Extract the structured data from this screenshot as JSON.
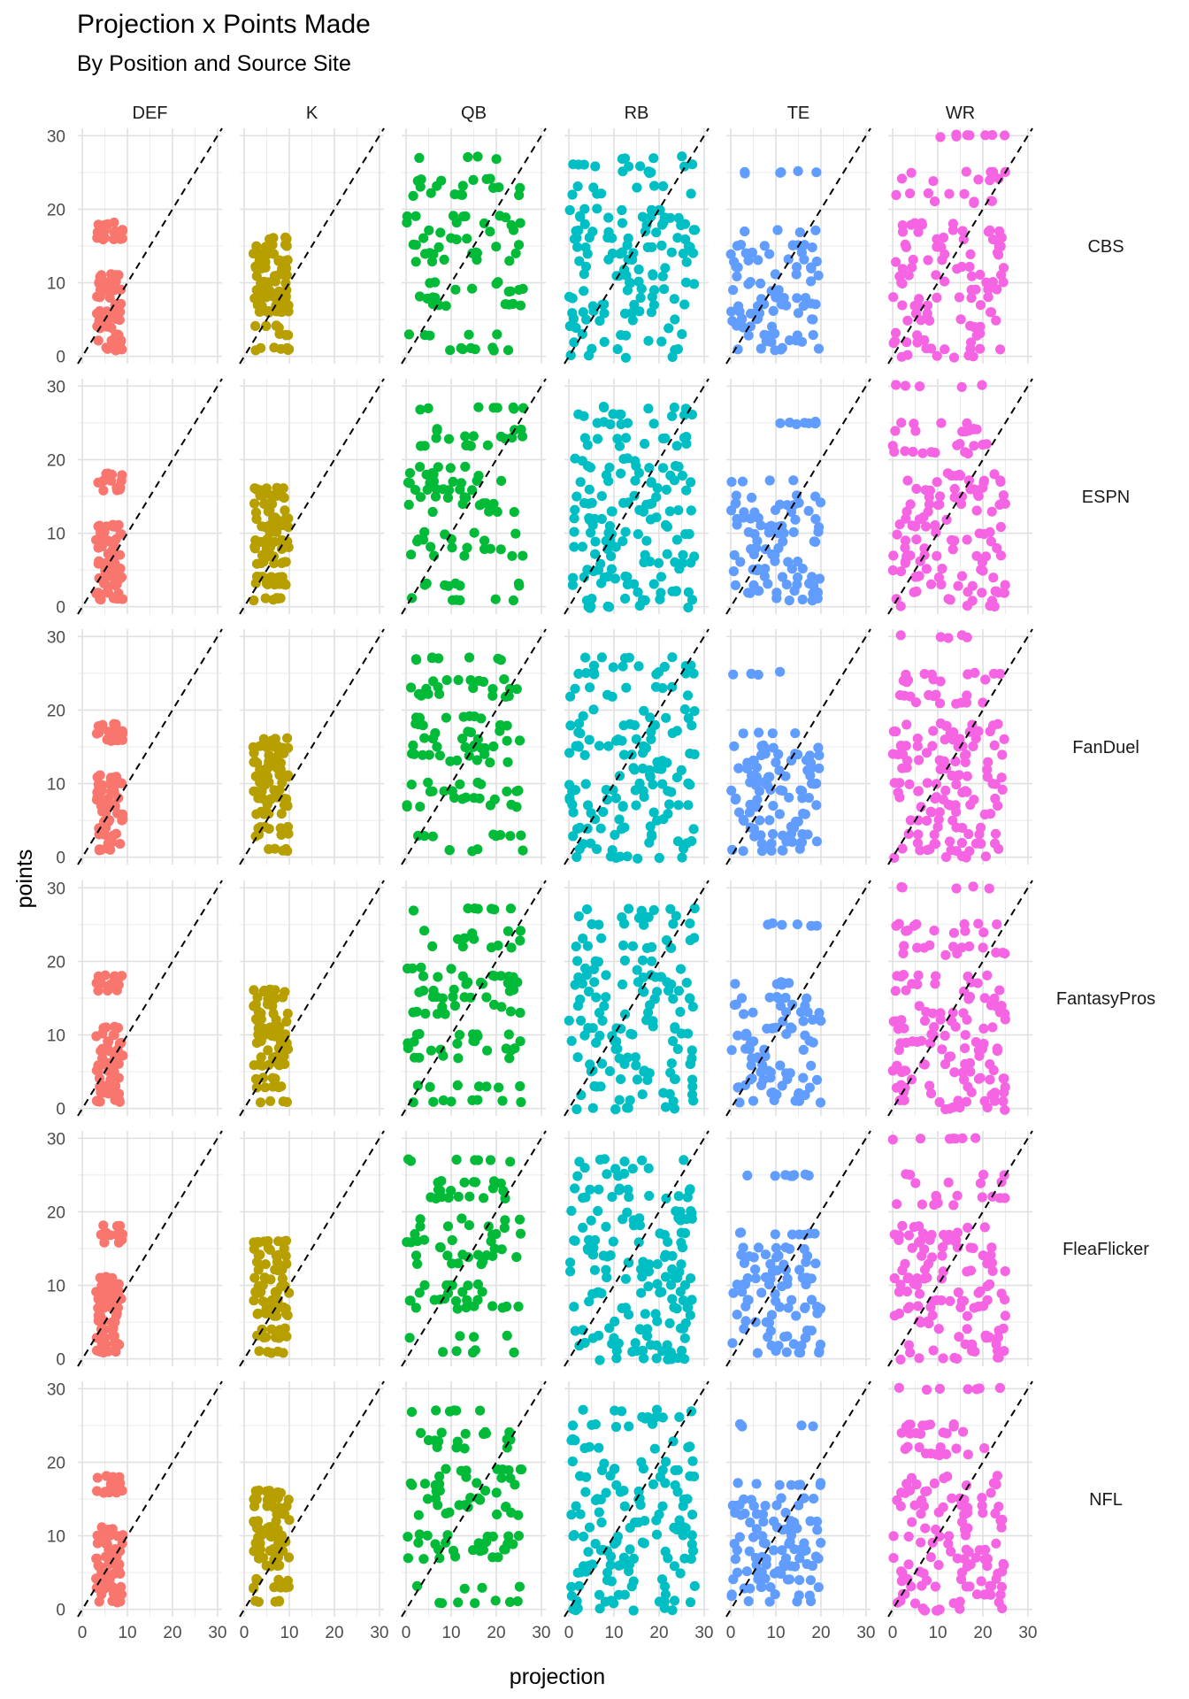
{
  "chart_data": {
    "type": "scatter",
    "title": "Projection x Points Made",
    "subtitle": "By Position and Source Site",
    "xlabel": "projection",
    "ylabel": "points",
    "xlim": [
      -1,
      31
    ],
    "ylim": [
      -1,
      31
    ],
    "x_ticks": [
      "0",
      "10",
      "20",
      "30"
    ],
    "y_ticks": [
      "0",
      "10",
      "20",
      "30"
    ],
    "grid": true,
    "reference_line": "y = x (dashed)",
    "facet_columns": [
      "DEF",
      "K",
      "QB",
      "RB",
      "TE",
      "WR"
    ],
    "facet_rows": [
      "CBS",
      "ESPN",
      "FanDuel",
      "FantasyPros",
      "FleaFlicker",
      "NFL"
    ],
    "colors": {
      "DEF": "#F8766D",
      "K": "#B79F00",
      "QB": "#00BA38",
      "RB": "#00BFC4",
      "TE": "#619CFF",
      "WR": "#F564E3"
    },
    "positions": {
      "DEF": {
        "x_range": [
          3,
          9
        ],
        "points_levels": [
          1,
          2,
          3,
          4,
          5,
          6,
          7,
          8,
          9,
          10,
          11,
          16,
          17,
          18
        ]
      },
      "K": {
        "x_range": [
          2,
          10
        ],
        "points_levels": [
          1,
          3,
          4,
          6,
          7,
          8,
          9,
          10,
          11,
          12,
          13,
          14,
          15,
          16
        ]
      },
      "QB": {
        "x_range": [
          0,
          26
        ],
        "points_levels": [
          1,
          3,
          7,
          8,
          9,
          10,
          13,
          14,
          15,
          16,
          17,
          18,
          19,
          22,
          23,
          24,
          27
        ]
      },
      "RB": {
        "x_range": [
          0,
          28
        ],
        "points_levels": [
          0,
          1,
          2,
          3,
          4,
          5,
          6,
          7,
          8,
          9,
          10,
          11,
          12,
          13,
          14,
          15,
          16,
          17,
          18,
          19,
          20,
          22,
          23,
          25,
          26,
          27
        ]
      },
      "TE": {
        "x_range": [
          0,
          20
        ],
        "points_levels": [
          1,
          2,
          3,
          4,
          5,
          6,
          7,
          8,
          9,
          10,
          11,
          12,
          13,
          14,
          15,
          17,
          25
        ]
      },
      "WR": {
        "x_range": [
          0,
          25
        ],
        "points_levels": [
          0,
          1,
          2,
          3,
          4,
          5,
          6,
          7,
          8,
          9,
          10,
          11,
          12,
          13,
          14,
          15,
          16,
          17,
          18,
          21,
          22,
          24,
          25,
          30
        ]
      }
    }
  }
}
